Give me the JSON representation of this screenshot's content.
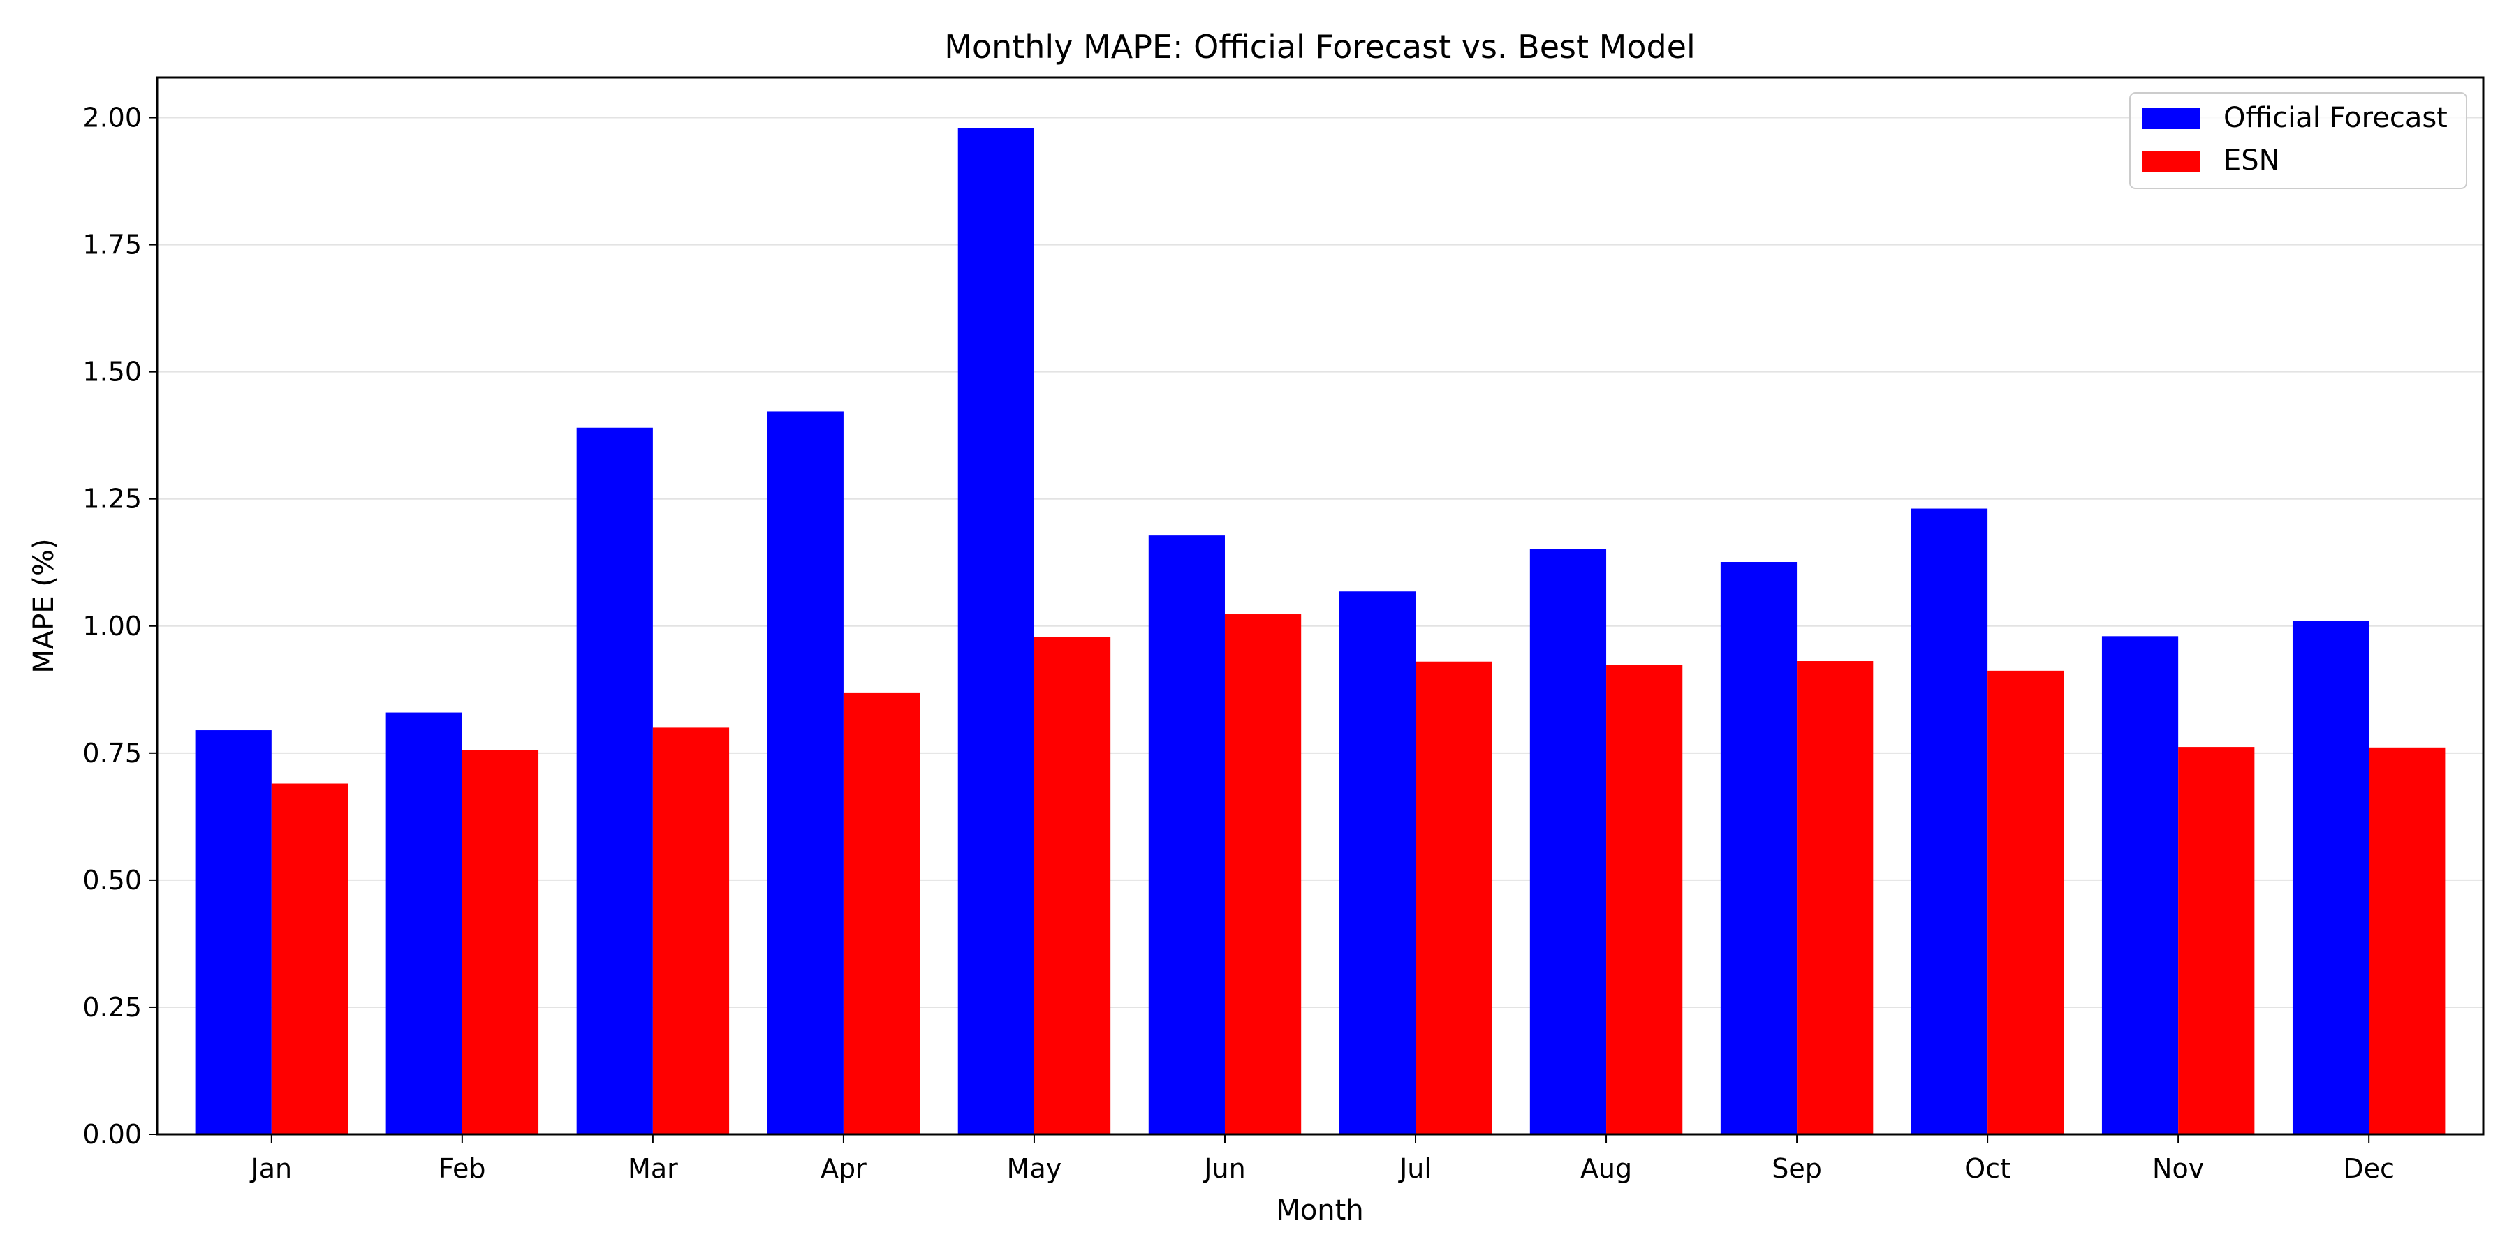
{
  "chart_data": {
    "type": "bar",
    "title": "Monthly MAPE: Official Forecast vs. Best Model",
    "xlabel": "Month",
    "ylabel": "MAPE (%)",
    "categories": [
      "Jan",
      "Feb",
      "Mar",
      "Apr",
      "May",
      "Jun",
      "Jul",
      "Aug",
      "Sep",
      "Oct",
      "Nov",
      "Dec"
    ],
    "series": [
      {
        "name": "Official Forecast",
        "color": "#0000ff",
        "values": [
          0.795,
          0.83,
          1.39,
          1.422,
          1.98,
          1.178,
          1.068,
          1.152,
          1.126,
          1.231,
          0.98,
          1.01
        ]
      },
      {
        "name": "ESN",
        "color": "#ff0000",
        "values": [
          0.69,
          0.756,
          0.8,
          0.868,
          0.979,
          1.023,
          0.93,
          0.924,
          0.931,
          0.912,
          0.762,
          0.761
        ]
      }
    ],
    "ylim": [
      0,
      2.079
    ],
    "yticks": [
      "0.00",
      "0.25",
      "0.50",
      "0.75",
      "1.00",
      "1.25",
      "1.50",
      "1.75",
      "2.00"
    ],
    "grid": "y-axis, light gray",
    "legend_position": "top-right"
  }
}
